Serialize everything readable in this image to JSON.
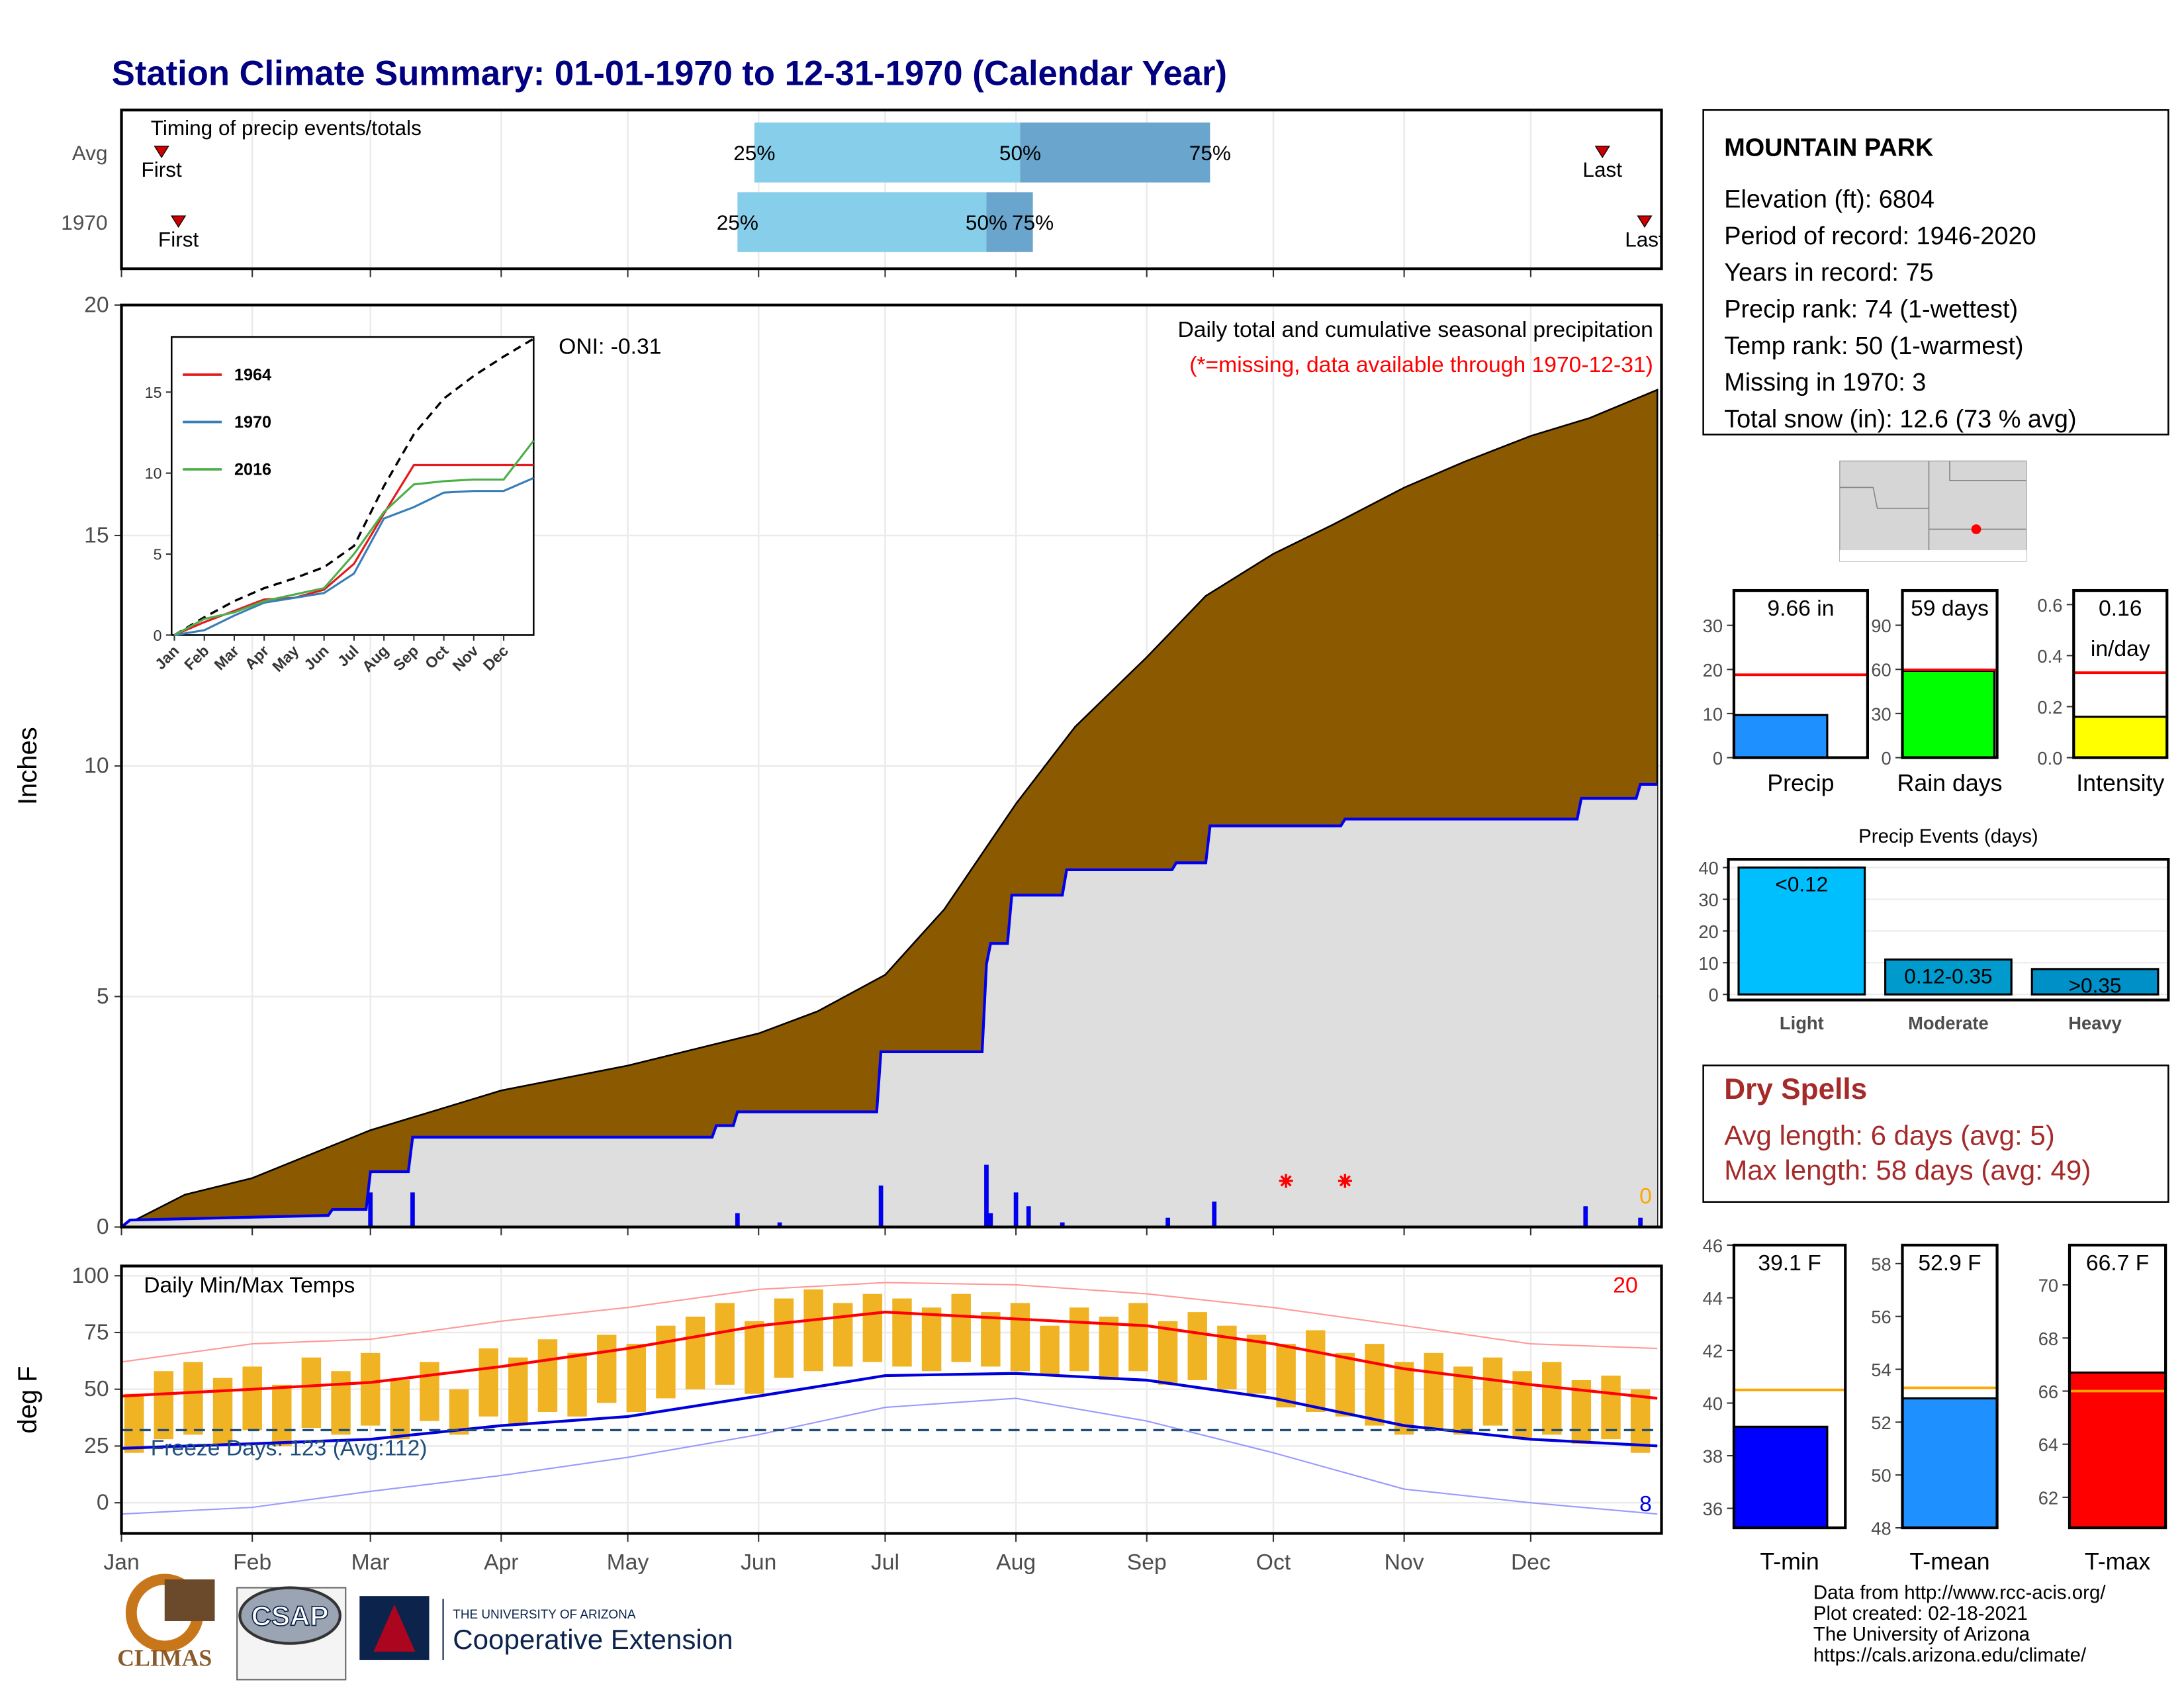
{
  "title": "Station Climate Summary: 01-01-1970 to 12-31-1970 (Calendar Year)",
  "station": {
    "name": "MOUNTAIN PARK",
    "lines": [
      "Elevation (ft): 6804",
      "Period of record: 1946-2020",
      "Years in record: 75",
      "Precip rank: 74 (1-wettest)",
      "Temp rank: 50 (1-warmest)",
      "Missing in 1970: 3",
      "Total snow (in): 12.6 (73 % avg)"
    ]
  },
  "dry_spells": {
    "title": "Dry Spells",
    "lines": [
      "Avg length: 6 days (avg: 5)",
      "Max length: 58 days (avg: 49)"
    ]
  },
  "logos": [
    "CLIMAS",
    "CSAP",
    "THE UNIVERSITY OF ARIZONA",
    "Cooperative Extension"
  ],
  "credits": [
    "Data from http://www.rcc-acis.org/",
    "Plot created: 02-18-2021",
    "The University of Arizona",
    "https://cals.arizona.edu/climate/"
  ],
  "chart_data": [
    {
      "type": "timing",
      "title": "Timing of precip events/totals",
      "categories": [
        "Avg",
        "1970"
      ],
      "xlim": [
        0,
        365
      ],
      "series": [
        {
          "name": "First",
          "values": [
            9.5,
            13.5
          ]
        },
        {
          "name": "25%",
          "values": [
            150,
            146
          ]
        },
        {
          "name": "50%",
          "values": [
            213,
            205
          ]
        },
        {
          "name": "75%",
          "values": [
            258,
            216
          ]
        },
        {
          "name": "Last",
          "values": [
            351,
            361
          ]
        }
      ],
      "colors": [
        "#87ceeb",
        "#6aa5cd"
      ],
      "marker_color": "#cc0000"
    },
    {
      "type": "area",
      "title": "Daily total and cumulative seasonal precipitation",
      "note": "(*=missing, data available through 1970-12-31)",
      "oni": "ONI: -0.31",
      "ylabel": "Inches",
      "xlim": [
        0,
        365
      ],
      "ylim": [
        0,
        20
      ],
      "yticks": [
        0,
        5,
        10,
        15,
        20
      ],
      "average": {
        "color": "#8b5a00",
        "x": [
          0,
          15,
          31,
          59,
          90,
          120,
          151,
          165,
          181,
          195,
          212,
          226,
          243,
          257,
          273,
          287,
          304,
          318,
          334,
          348,
          364
        ],
        "values": [
          0,
          0.7,
          1.06,
          2.1,
          2.96,
          3.5,
          4.2,
          4.68,
          5.47,
          6.89,
          9.18,
          10.85,
          12.36,
          13.69,
          14.6,
          15.23,
          16.04,
          16.59,
          17.16,
          17.55,
          18.16
        ]
      },
      "year": {
        "color": "#0000ee",
        "fill": "#dedede",
        "x": [
          0,
          2,
          49,
          50,
          58,
          59,
          68,
          69,
          140,
          141,
          145,
          146,
          179,
          180,
          204,
          205,
          206,
          210,
          211,
          223,
          224,
          249,
          250,
          257,
          258,
          289,
          290,
          345,
          346,
          359,
          360,
          364
        ],
        "values": [
          0,
          0.15,
          0.25,
          0.38,
          0.38,
          1.2,
          1.2,
          1.95,
          1.95,
          2.2,
          2.2,
          2.5,
          2.5,
          3.8,
          3.8,
          5.7,
          6.15,
          6.15,
          7.2,
          7.2,
          7.75,
          7.75,
          7.9,
          7.9,
          8.7,
          8.7,
          8.85,
          8.85,
          9.3,
          9.3,
          9.6,
          9.6
        ]
      },
      "daily": {
        "color": "#0000ee",
        "x": [
          59,
          69,
          146,
          156,
          180,
          205,
          206,
          212,
          215,
          223,
          248,
          259,
          347,
          360
        ],
        "values": [
          0.75,
          0.75,
          0.3,
          0.1,
          0.9,
          1.35,
          0.3,
          0.75,
          0.45,
          0.1,
          0.2,
          0.55,
          0.45,
          0.2
        ]
      },
      "missing": {
        "color": "#ff0000",
        "x": [
          276,
          290
        ],
        "values": [
          1,
          1
        ]
      },
      "snow_days": 0,
      "snow_color": "#ffa500"
    },
    {
      "type": "line",
      "xlim": [
        0,
        12
      ],
      "ylim": [
        0,
        18.4
      ],
      "yticks": [
        0,
        5,
        10,
        15
      ],
      "xticks": [
        {
          "value": 0,
          "label": "Jan"
        },
        {
          "value": 1,
          "label": "Feb"
        },
        {
          "value": 2,
          "label": "Mar"
        },
        {
          "value": 3,
          "label": "Apr"
        },
        {
          "value": 4,
          "label": "May"
        },
        {
          "value": 5,
          "label": "Jun"
        },
        {
          "value": 6,
          "label": "Jul"
        },
        {
          "value": 7,
          "label": "Aug"
        },
        {
          "value": 8,
          "label": "Sep"
        },
        {
          "value": 9,
          "label": "Oct"
        },
        {
          "value": 10,
          "label": "Nov"
        },
        {
          "value": 11,
          "label": "Dec"
        }
      ],
      "x": [
        0,
        1,
        2,
        3,
        4,
        5,
        6,
        7,
        8,
        9,
        10,
        11,
        12
      ],
      "average": {
        "color": "#000000",
        "values": [
          0,
          1.1,
          2.1,
          2.9,
          3.5,
          4.2,
          5.5,
          9.2,
          12.4,
          14.6,
          16.0,
          17.2,
          18.3
        ]
      },
      "series": [
        {
          "name": "1964",
          "color": "#e41a1c",
          "values": [
            0,
            0.8,
            1.5,
            2.2,
            2.3,
            2.8,
            4.4,
            7.5,
            10.5,
            10.5,
            10.5,
            10.5,
            10.5
          ]
        },
        {
          "name": "1970",
          "color": "#377eb8",
          "values": [
            0,
            0.3,
            1.2,
            2.0,
            2.3,
            2.6,
            3.8,
            7.2,
            7.9,
            8.8,
            8.9,
            8.9,
            9.7
          ]
        },
        {
          "name": "2016",
          "color": "#4daf4a",
          "values": [
            0,
            1.0,
            1.4,
            2.1,
            2.5,
            2.9,
            5.0,
            7.6,
            9.3,
            9.5,
            9.6,
            9.6,
            12.0
          ]
        }
      ]
    },
    {
      "type": "bar",
      "categories": [
        "Precip"
      ],
      "values": [
        9.66
      ],
      "value_labels": [
        "9.66 in"
      ],
      "average": 18.8,
      "color": "#1e90ff",
      "avg_color": "#ff0000",
      "ylim": [
        0,
        37.9
      ],
      "yticks": [
        0,
        10,
        20,
        30
      ]
    },
    {
      "type": "bar",
      "categories": [
        "Rain days"
      ],
      "values": [
        59
      ],
      "value_labels": [
        "59 days"
      ],
      "average": 59.7,
      "color": "#00ff00",
      "avg_color": "#ff0000",
      "ylim": [
        0,
        113.6
      ],
      "yticks": [
        0,
        30,
        60,
        90
      ]
    },
    {
      "type": "bar",
      "categories": [
        "Intensity"
      ],
      "values": [
        0.16
      ],
      "value_labels": [
        "0.16"
      ],
      "unit": "in/day",
      "average": 0.333,
      "color": "#ffff00",
      "avg_color": "#ff0000",
      "ylim": [
        0,
        0.655
      ],
      "yticks": [
        {
          "value": 0,
          "label": "0.0"
        },
        {
          "value": 0.2,
          "label": "0.2"
        },
        {
          "value": 0.4,
          "label": "0.4"
        },
        {
          "value": 0.6,
          "label": "0.6"
        }
      ]
    },
    {
      "type": "bar",
      "title": "Precip Events (days)",
      "categories": [
        "Light",
        "Moderate",
        "Heavy"
      ],
      "values": [
        40,
        11,
        8
      ],
      "bar_labels": [
        "<0.12",
        "0.12-0.35",
        ">0.35"
      ],
      "colors": [
        "#00bfff",
        "#009acd",
        "#0090c8"
      ],
      "ylim": [
        0,
        42.6
      ],
      "yticks": [
        0,
        10,
        20,
        30,
        40
      ]
    },
    {
      "type": "range",
      "title": "Daily Min/Max Temps",
      "ylabel": "deg F",
      "xlim": [
        0,
        365
      ],
      "ylim": [
        -13.5,
        104.3
      ],
      "yticks": [
        0,
        25,
        50,
        75,
        100
      ],
      "xticks": [
        {
          "value": 0,
          "label": "Jan"
        },
        {
          "value": 31,
          "label": "Feb"
        },
        {
          "value": 59,
          "label": "Mar"
        },
        {
          "value": 90,
          "label": "Apr"
        },
        {
          "value": 120,
          "label": "May"
        },
        {
          "value": 151,
          "label": "Jun"
        },
        {
          "value": 181,
          "label": "Jul"
        },
        {
          "value": 212,
          "label": "Aug"
        },
        {
          "value": 243,
          "label": "Sep"
        },
        {
          "value": 273,
          "label": "Oct"
        },
        {
          "value": 304,
          "label": "Nov"
        },
        {
          "value": 334,
          "label": "Dec"
        }
      ],
      "freeze": 32,
      "freeze_label": "Freeze Days: 123 (Avg:112)",
      "record_high_count": 20,
      "record_low_count": 8,
      "daily": {
        "color": "#f0b323",
        "x": [
          3,
          10,
          17,
          24,
          31,
          38,
          45,
          52,
          59,
          66,
          73,
          80,
          87,
          94,
          101,
          108,
          115,
          122,
          129,
          136,
          143,
          150,
          157,
          164,
          171,
          178,
          185,
          192,
          199,
          206,
          213,
          220,
          227,
          234,
          241,
          248,
          255,
          262,
          269,
          276,
          283,
          290,
          297,
          304,
          311,
          318,
          325,
          332,
          339,
          346,
          353,
          360
        ],
        "high": [
          48,
          58,
          62,
          55,
          60,
          52,
          64,
          58,
          66,
          54,
          62,
          50,
          68,
          64,
          72,
          66,
          74,
          70,
          78,
          82,
          88,
          80,
          90,
          94,
          88,
          92,
          90,
          86,
          92,
          84,
          88,
          78,
          86,
          82,
          88,
          80,
          84,
          78,
          74,
          70,
          76,
          66,
          70,
          62,
          66,
          60,
          64,
          58,
          62,
          54,
          56,
          50
        ],
        "low": [
          22,
          28,
          30,
          26,
          32,
          25,
          33,
          30,
          34,
          28,
          36,
          30,
          38,
          34,
          40,
          38,
          44,
          40,
          46,
          50,
          52,
          48,
          55,
          58,
          60,
          62,
          60,
          58,
          62,
          60,
          58,
          56,
          58,
          54,
          58,
          52,
          54,
          50,
          48,
          42,
          40,
          38,
          34,
          30,
          32,
          30,
          34,
          28,
          30,
          26,
          28,
          22
        ]
      },
      "x": [
        0,
        31,
        59,
        90,
        120,
        151,
        181,
        212,
        243,
        273,
        304,
        334,
        364
      ],
      "avg_max": {
        "color": "#ff0000",
        "values": [
          47,
          50,
          53,
          60,
          68,
          78,
          84,
          81,
          78,
          70,
          59,
          52,
          46
        ]
      },
      "avg_min": {
        "color": "#0000dd",
        "values": [
          24,
          26,
          28,
          34,
          38,
          47,
          56,
          57,
          54,
          46,
          34,
          28,
          25
        ]
      },
      "record_high": {
        "color": "#ff9999",
        "values": [
          62,
          70,
          72,
          80,
          86,
          94,
          97,
          96,
          92,
          86,
          78,
          70,
          68
        ]
      },
      "record_low": {
        "color": "#9999ff",
        "values": [
          -5,
          -2,
          5,
          12,
          20,
          30,
          42,
          46,
          36,
          22,
          6,
          0,
          -5
        ]
      }
    },
    {
      "type": "bar",
      "categories": [
        "T-min"
      ],
      "values": [
        39.1
      ],
      "value_labels": [
        "39.1 F"
      ],
      "average": 40.5,
      "color": "#0000ff",
      "avg_color": "#ffa500",
      "ylim": [
        35.26,
        46
      ],
      "yticks": [
        36,
        38,
        40,
        42,
        44,
        46
      ]
    },
    {
      "type": "bar",
      "categories": [
        "T-mean"
      ],
      "values": [
        52.9
      ],
      "value_labels": [
        "52.9 F"
      ],
      "average": 53.3,
      "color": "#1e90ff",
      "avg_color": "#ffa500",
      "ylim": [
        48,
        58.7
      ],
      "yticks": [
        48,
        50,
        52,
        54,
        56,
        58
      ]
    },
    {
      "type": "bar",
      "categories": [
        "T-max"
      ],
      "values": [
        66.7
      ],
      "value_labels": [
        "66.7 F"
      ],
      "average": 66,
      "color": "#ff0000",
      "avg_color": "#ffa500",
      "ylim": [
        60.85,
        71.5
      ],
      "yticks": [
        62,
        64,
        66,
        68,
        70
      ]
    }
  ]
}
